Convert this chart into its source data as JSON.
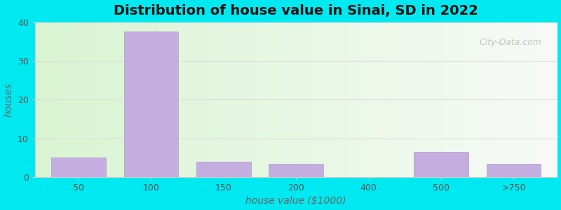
{
  "title": "Distribution of house value in Sinai, SD in 2022",
  "xlabel": "house value ($1000)",
  "ylabel": "houses",
  "categories": [
    "50",
    "100",
    "150",
    "200",
    "400",
    "500",
    ">750"
  ],
  "values": [
    5,
    37.5,
    4,
    3.5,
    0,
    6.5,
    3.5
  ],
  "bar_color": "#c4aee0",
  "bar_edge_color": "#b09ccc",
  "ylim": [
    0,
    40
  ],
  "yticks": [
    0,
    10,
    20,
    30,
    40
  ],
  "background_outer": "#00e8f0",
  "grid_color": "#dddddd",
  "title_fontsize": 14,
  "label_fontsize": 10,
  "tick_fontsize": 9,
  "watermark_text": "City-Data.com",
  "bar_width": 0.75
}
